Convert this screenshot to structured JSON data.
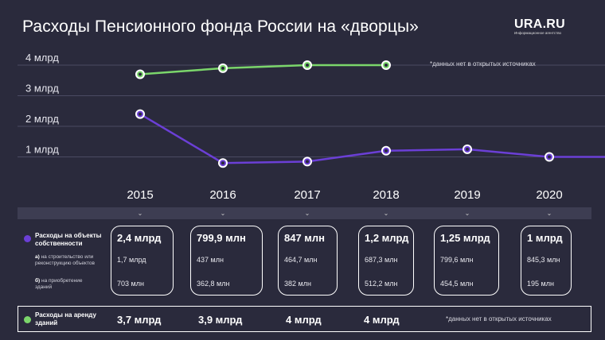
{
  "title": "Расходы Пенсионного фонда России на «дворцы»",
  "logo": {
    "main": "URA.RU",
    "sub": "Информационное агентство"
  },
  "note_top": "*данных нет в открытых источниках",
  "colors": {
    "background": "#2a2a3c",
    "purple": "#6b3fd6",
    "green": "#7bd66b"
  },
  "chart_data": {
    "type": "line",
    "categories": [
      "2015",
      "2016",
      "2017",
      "2018",
      "2019",
      "2020"
    ],
    "y_ticks": [
      "1 млрд",
      "2 млрд",
      "3 млрд",
      "4 млрд"
    ],
    "ylim": [
      0,
      4.4
    ],
    "grid": true,
    "series": [
      {
        "name": "Расходы на объекты собственности",
        "color": "#6b3fd6",
        "values": [
          2.4,
          0.7999,
          0.847,
          1.2,
          1.25,
          1.0
        ]
      },
      {
        "name": "Расходы на аренду зданий",
        "color": "#7bd66b",
        "values": [
          3.7,
          3.9,
          4.0,
          4.0,
          null,
          null
        ]
      }
    ]
  },
  "table": {
    "row1": {
      "label": "Расходы на объекты собственности",
      "sub_a_prefix": "а)",
      "sub_a": "на строительство или реконструкцию объектов",
      "sub_b_prefix": "б)",
      "sub_b": "на приобретение зданий",
      "totals": [
        "2,4 млрд",
        "799,9 млн",
        "847 млн",
        "1,2 млрд",
        "1,25 млрд",
        "1 млрд"
      ],
      "a_values": [
        "1,7 млрд",
        "437 млн",
        "464,7 млн",
        "687,3 млн",
        "799,6 млн",
        "845,3 млн"
      ],
      "b_values": [
        "703 млн",
        "362,8 млн",
        "382 млн",
        "512,2 млн",
        "454,5 млн",
        "195 млн"
      ]
    },
    "row2": {
      "label": "Расходы на аренду зданий",
      "values": [
        "3,7 млрд",
        "3,9 млрд",
        "4 млрд",
        "4 млрд"
      ],
      "note": "*данных нет в открытых источниках"
    }
  }
}
